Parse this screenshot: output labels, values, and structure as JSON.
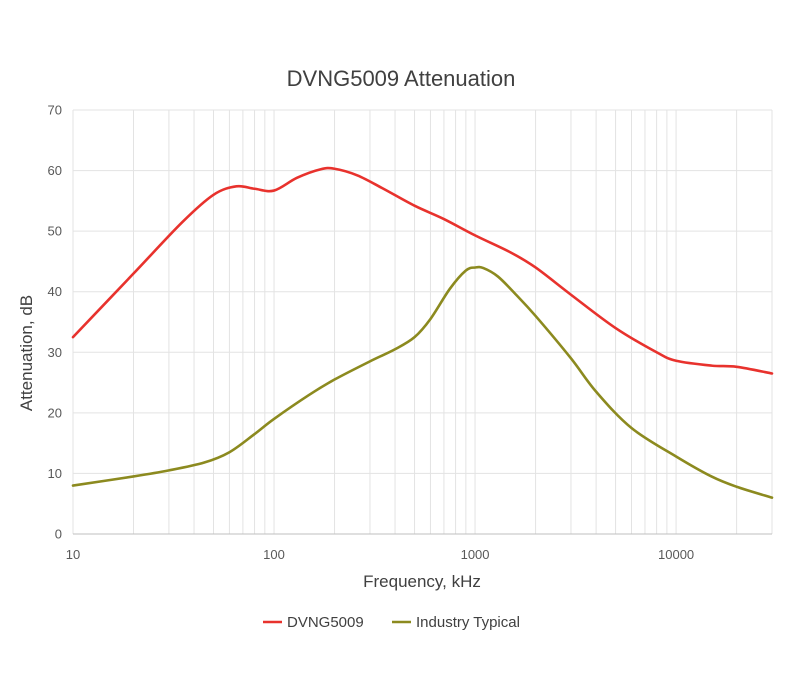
{
  "chart_data": {
    "type": "line",
    "title": "DVNG5009 Attenuation",
    "xlabel": "Frequency, kHz",
    "ylabel": "Attenuation, dB",
    "xscale": "log",
    "xlim": [
      10,
      30000
    ],
    "ylim": [
      0,
      70
    ],
    "yticks": [
      0,
      10,
      20,
      30,
      40,
      50,
      60,
      70
    ],
    "xticks": [
      10,
      100,
      1000,
      10000
    ],
    "grid": true,
    "legend": "bottom",
    "series": [
      {
        "name": "DVNG5009",
        "color": "#e8322d",
        "x": [
          10,
          20,
          35,
          50,
          65,
          80,
          100,
          130,
          170,
          200,
          260,
          350,
          500,
          700,
          1000,
          1500,
          2000,
          3000,
          5000,
          8000,
          10000,
          15000,
          20000,
          30000
        ],
        "y": [
          32.5,
          43,
          51.5,
          56,
          57.4,
          57,
          56.7,
          58.8,
          60.2,
          60.3,
          59.2,
          57,
          54.2,
          52,
          49.3,
          46.5,
          44,
          39.5,
          34,
          30,
          28.6,
          27.8,
          27.6,
          26.5
        ]
      },
      {
        "name": "Industry Typical",
        "color": "#8c8a1f",
        "x": [
          10,
          20,
          30,
          45,
          60,
          80,
          100,
          150,
          200,
          300,
          400,
          500,
          600,
          750,
          900,
          1000,
          1100,
          1300,
          1600,
          2000,
          3000,
          4000,
          6000,
          10000,
          15000,
          20000,
          30000
        ],
        "y": [
          8,
          9.5,
          10.5,
          11.8,
          13.5,
          16.5,
          19,
          23,
          25.5,
          28.5,
          30.5,
          32.5,
          35.5,
          40.5,
          43.5,
          44,
          43.9,
          42.5,
          39.5,
          36,
          29,
          23.5,
          17.5,
          12.8,
          9.5,
          7.8,
          6
        ]
      }
    ]
  }
}
